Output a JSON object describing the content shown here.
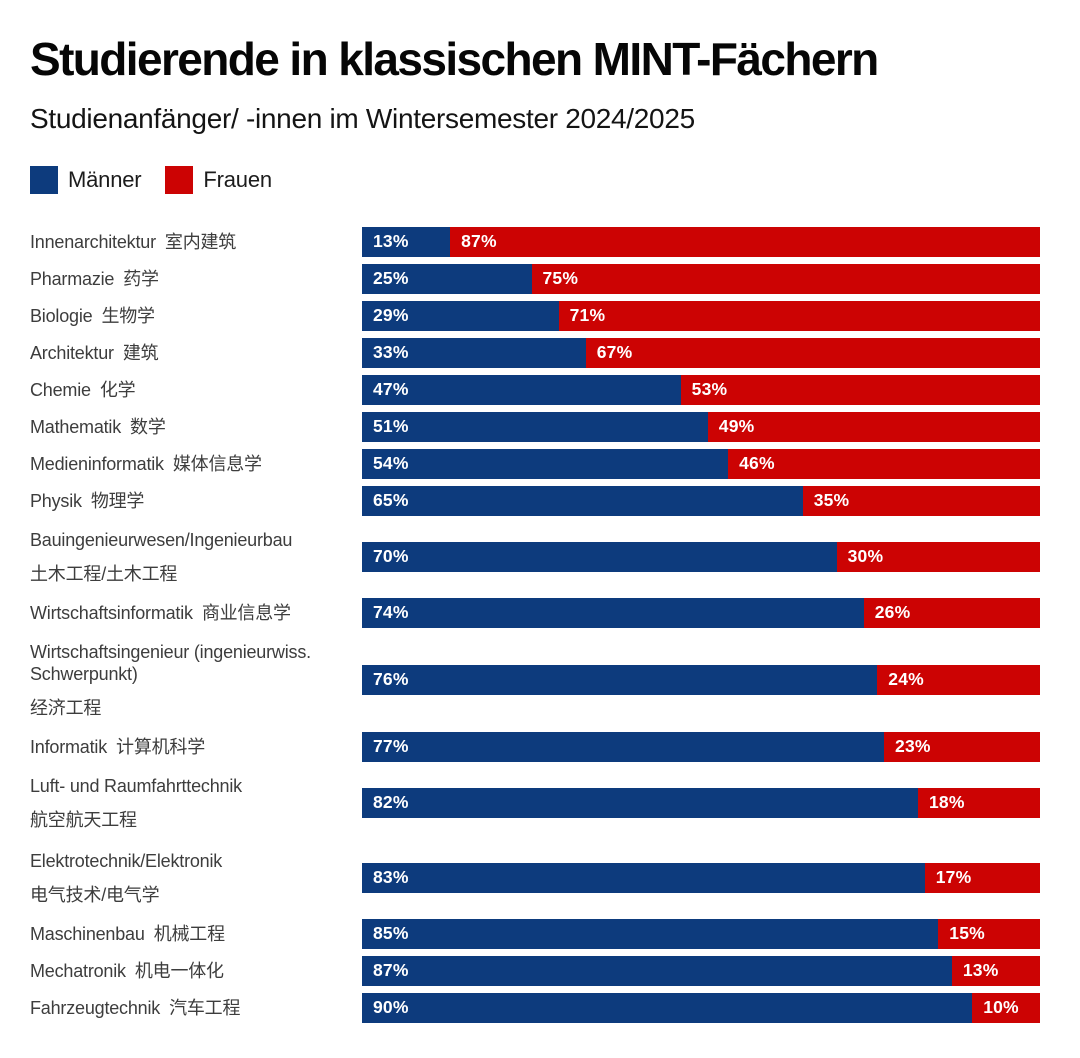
{
  "header": {
    "title": "Studierende in klassischen MINT-Fächern",
    "subtitle": "Studienanfänger/ -innen im Wintersemester 2024/2025"
  },
  "colors": {
    "men": "#0d3b7d",
    "women": "#cc0303",
    "label_text": "#3d3d3d",
    "bar_value_text": "#ffffff"
  },
  "chart_data": {
    "type": "bar",
    "orientation": "horizontal",
    "stacked": true,
    "xlim": [
      0,
      100
    ],
    "value_suffix": "%",
    "grid": false,
    "legend_position": "top-left",
    "categories": [
      {
        "de": "Innenarchitektur",
        "zh": "室内建筑",
        "zh_own_line": false
      },
      {
        "de": "Pharmazie",
        "zh": "药学",
        "zh_own_line": false
      },
      {
        "de": "Biologie",
        "zh": "生物学",
        "zh_own_line": false
      },
      {
        "de": "Architektur",
        "zh": "建筑",
        "zh_own_line": false
      },
      {
        "de": "Chemie",
        "zh": "化学",
        "zh_own_line": false
      },
      {
        "de": "Mathematik",
        "zh": "数学",
        "zh_own_line": false
      },
      {
        "de": "Medieninformatik",
        "zh": "媒体信息学",
        "zh_own_line": false
      },
      {
        "de": "Physik",
        "zh": "物理学",
        "zh_own_line": false
      },
      {
        "de": "Bauingenieurwesen/Ingenieurbau",
        "zh": "土木工程/土木工程",
        "zh_own_line": true
      },
      {
        "de": "Wirtschaftsinformatik",
        "zh": "商业信息学",
        "zh_own_line": false
      },
      {
        "de": "Wirtschaftsingenieur (ingenieurwiss. Schwerpunkt)",
        "zh": "经济工程",
        "zh_own_line": true
      },
      {
        "de": "Informatik",
        "zh": "计算机科学",
        "zh_own_line": false
      },
      {
        "de": "Luft- und Raumfahrttechnik",
        "zh": "航空航天工程",
        "zh_own_line": true
      },
      {
        "de": "Elektrotechnik/Elektronik",
        "zh": "电气技术/电气学",
        "zh_own_line": true
      },
      {
        "de": "Maschinenbau",
        "zh": "机械工程",
        "zh_own_line": false
      },
      {
        "de": "Mechatronik",
        "zh": "机电一体化",
        "zh_own_line": false
      },
      {
        "de": "Fahrzeugtechnik",
        "zh": "汽车工程",
        "zh_own_line": false
      }
    ],
    "series": [
      {
        "name": "Männer",
        "color": "#0d3b7d",
        "values": [
          13,
          25,
          29,
          33,
          47,
          51,
          54,
          65,
          70,
          74,
          76,
          77,
          82,
          83,
          85,
          87,
          90
        ]
      },
      {
        "name": "Frauen",
        "color": "#cc0303",
        "values": [
          87,
          75,
          71,
          67,
          53,
          49,
          46,
          35,
          30,
          26,
          24,
          23,
          18,
          17,
          15,
          13,
          10
        ]
      }
    ]
  }
}
